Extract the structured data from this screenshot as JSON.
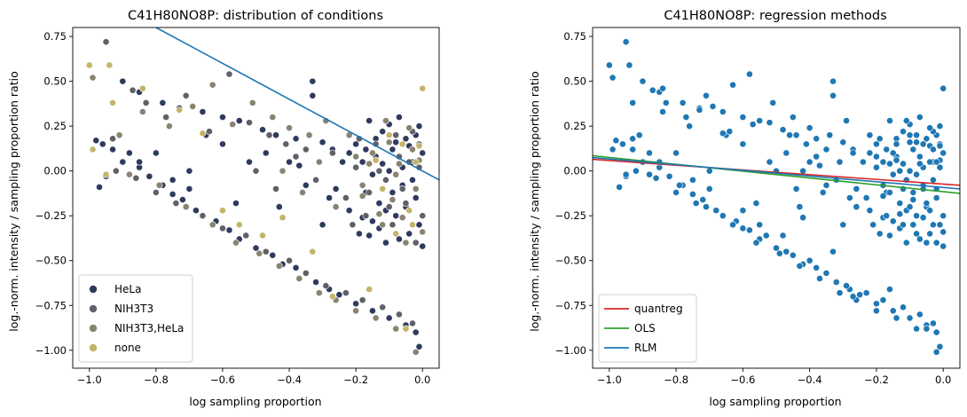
{
  "chart_data": [
    {
      "type": "scatter",
      "title": "C41H80NO8P: distribution of conditions",
      "xlabel": "log sampling proportion",
      "ylabel": "log.-norm. intensity / sampling proportion ratio",
      "xlim": [
        -1.05,
        0.05
      ],
      "ylim": [
        -1.1,
        0.8
      ],
      "xticks": [
        "−1.0",
        "−0.8",
        "−0.6",
        "−0.4",
        "−0.2",
        "0.0"
      ],
      "yticks": [
        "−1.00",
        "−0.75",
        "−0.50",
        "−0.25",
        "0.00",
        "0.25",
        "0.50",
        "0.75"
      ],
      "legend_position": "lower-left",
      "series": [
        {
          "name": "HeLa",
          "color": "#2f3a5e",
          "values": [
            [
              -0.98,
              0.17
            ],
            [
              -0.96,
              0.15
            ],
            [
              -0.93,
              0.12
            ],
            [
              -0.9,
              0.05
            ],
            [
              -0.88,
              0.1
            ],
            [
              -0.85,
              0.02
            ],
            [
              -0.82,
              -0.03
            ],
            [
              -0.78,
              -0.08
            ],
            [
              -0.75,
              -0.13
            ],
            [
              -0.72,
              -0.16
            ],
            [
              -0.7,
              -0.1
            ],
            [
              -0.68,
              -0.22
            ],
            [
              -0.62,
              -0.28
            ],
            [
              -0.58,
              -0.33
            ],
            [
              -0.55,
              -0.38
            ],
            [
              -0.5,
              -0.43
            ],
            [
              -0.45,
              -0.47
            ],
            [
              -0.42,
              -0.52
            ],
            [
              -0.38,
              -0.54
            ],
            [
              -0.32,
              -0.62
            ],
            [
              -0.28,
              -0.66
            ],
            [
              -0.25,
              -0.69
            ],
            [
              -0.2,
              -0.74
            ],
            [
              -0.15,
              -0.78
            ],
            [
              -0.1,
              -0.82
            ],
            [
              -0.05,
              -0.86
            ],
            [
              -0.02,
              -0.9
            ],
            [
              -0.01,
              -0.98
            ],
            [
              -0.9,
              0.5
            ],
            [
              -0.85,
              0.44
            ],
            [
              -0.78,
              0.38
            ],
            [
              -0.73,
              0.35
            ],
            [
              -0.66,
              0.33
            ],
            [
              -0.6,
              0.3
            ],
            [
              -0.55,
              0.28
            ],
            [
              -0.48,
              0.23
            ],
            [
              -0.44,
              0.2
            ],
            [
              -0.38,
              0.18
            ],
            [
              -0.33,
              0.42
            ],
            [
              -0.3,
              0.16
            ],
            [
              -0.27,
              0.12
            ],
            [
              -0.22,
              0.1
            ],
            [
              -0.97,
              -0.09
            ],
            [
              -0.95,
              -0.03
            ],
            [
              -0.85,
              0.05
            ],
            [
              -0.8,
              0.1
            ],
            [
              -0.75,
              -0.05
            ],
            [
              -0.7,
              0.0
            ],
            [
              -0.65,
              0.2
            ],
            [
              -0.6,
              0.15
            ],
            [
              -0.56,
              -0.18
            ],
            [
              -0.52,
              0.05
            ],
            [
              -0.47,
              0.1
            ],
            [
              -0.43,
              -0.2
            ],
            [
              -0.4,
              0.05
            ],
            [
              -0.37,
              0.03
            ],
            [
              -0.35,
              -0.08
            ],
            [
              -0.33,
              0.5
            ],
            [
              -0.3,
              -0.3
            ],
            [
              -0.28,
              -0.15
            ],
            [
              -0.26,
              -0.1
            ],
            [
              -0.24,
              0.05
            ],
            [
              -0.22,
              -0.22
            ],
            [
              -0.2,
              0.15
            ],
            [
              -0.19,
              -0.35
            ],
            [
              -0.18,
              0.05
            ],
            [
              -0.17,
              -0.12
            ],
            [
              -0.16,
              0.28
            ],
            [
              -0.15,
              -0.28
            ],
            [
              -0.14,
              0.08
            ],
            [
              -0.13,
              -0.18
            ],
            [
              -0.12,
              0.22
            ],
            [
              -0.11,
              -0.4
            ],
            [
              -0.1,
              0.0
            ],
            [
              -0.09,
              0.12
            ],
            [
              -0.08,
              -0.25
            ],
            [
              -0.07,
              0.3
            ],
            [
              -0.06,
              -0.08
            ],
            [
              -0.05,
              0.18
            ],
            [
              -0.04,
              -0.35
            ],
            [
              -0.03,
              0.05
            ],
            [
              -0.02,
              -0.15
            ],
            [
              -0.01,
              0.25
            ],
            [
              0.0,
              -0.42
            ],
            [
              0.0,
              0.1
            ],
            [
              -0.01,
              -0.3
            ],
            [
              -0.02,
              0.2
            ],
            [
              -0.03,
              -0.05
            ],
            [
              -0.04,
              0.14
            ],
            [
              -0.05,
              -0.2
            ],
            [
              -0.06,
              0.02
            ],
            [
              -0.07,
              -0.38
            ],
            [
              -0.08,
              0.16
            ],
            [
              -0.09,
              -0.12
            ],
            [
              -0.1,
              0.26
            ],
            [
              -0.11,
              -0.22
            ],
            [
              -0.12,
              0.04
            ],
            [
              -0.13,
              -0.32
            ],
            [
              -0.14,
              0.18
            ],
            [
              -0.15,
              -0.02
            ],
            [
              -0.16,
              -0.36
            ],
            [
              -0.17,
              0.12
            ],
            [
              -0.18,
              -0.26
            ]
          ]
        },
        {
          "name": "NIH3T3",
          "color": "#5f6068",
          "values": [
            [
              -0.95,
              0.72
            ],
            [
              -0.93,
              0.18
            ],
            [
              -0.87,
              0.45
            ],
            [
              -0.83,
              0.38
            ],
            [
              -0.77,
              0.3
            ],
            [
              -0.71,
              0.42
            ],
            [
              -0.64,
              0.22
            ],
            [
              -0.58,
              0.54
            ],
            [
              -0.52,
              0.27
            ],
            [
              -0.46,
              0.2
            ],
            [
              -0.41,
              0.15
            ],
            [
              -0.35,
              0.12
            ],
            [
              -0.92,
              0.0
            ],
            [
              -0.86,
              -0.04
            ],
            [
              -0.8,
              -0.12
            ],
            [
              -0.74,
              -0.18
            ],
            [
              -0.66,
              -0.25
            ],
            [
              -0.6,
              -0.32
            ],
            [
              -0.53,
              -0.36
            ],
            [
              -0.47,
              -0.45
            ],
            [
              -0.4,
              -0.5
            ],
            [
              -0.35,
              -0.57
            ],
            [
              -0.29,
              -0.64
            ],
            [
              -0.23,
              -0.68
            ],
            [
              -0.18,
              -0.72
            ],
            [
              -0.12,
              -0.76
            ],
            [
              -0.07,
              -0.8
            ],
            [
              -0.03,
              -0.85
            ],
            [
              -0.5,
              0.0
            ],
            [
              -0.44,
              -0.1
            ],
            [
              -0.38,
              0.08
            ],
            [
              -0.32,
              -0.05
            ],
            [
              -0.27,
              0.1
            ],
            [
              -0.23,
              -0.15
            ],
            [
              -0.2,
              0.02
            ],
            [
              -0.17,
              -0.25
            ],
            [
              -0.14,
              0.15
            ],
            [
              -0.11,
              -0.05
            ],
            [
              -0.09,
              -0.3
            ],
            [
              -0.07,
              0.08
            ],
            [
              -0.05,
              -0.18
            ],
            [
              -0.03,
              0.22
            ],
            [
              -0.02,
              -0.4
            ],
            [
              -0.01,
              0.02
            ],
            [
              0.0,
              -0.25
            ],
            [
              -0.01,
              0.15
            ],
            [
              -0.04,
              0.05
            ],
            [
              -0.06,
              -0.1
            ],
            [
              -0.08,
              0.2
            ],
            [
              -0.1,
              -0.2
            ],
            [
              -0.13,
              0.0
            ],
            [
              -0.16,
              -0.12
            ],
            [
              -0.19,
              0.18
            ],
            [
              -0.21,
              -0.3
            ]
          ]
        },
        {
          "name": "NIH3T3,HeLa",
          "color": "#8a8371",
          "values": [
            [
              -0.99,
              0.52
            ],
            [
              -0.91,
              0.2
            ],
            [
              -0.84,
              0.33
            ],
            [
              -0.76,
              0.25
            ],
            [
              -0.69,
              0.36
            ],
            [
              -0.63,
              0.48
            ],
            [
              -0.57,
              0.26
            ],
            [
              -0.51,
              0.38
            ],
            [
              -0.45,
              0.3
            ],
            [
              -0.4,
              0.24
            ],
            [
              -0.34,
              0.2
            ],
            [
              -0.29,
              0.28
            ],
            [
              -0.88,
              -0.02
            ],
            [
              -0.79,
              -0.08
            ],
            [
              -0.71,
              -0.2
            ],
            [
              -0.63,
              -0.3
            ],
            [
              -0.56,
              -0.4
            ],
            [
              -0.49,
              -0.46
            ],
            [
              -0.43,
              -0.53
            ],
            [
              -0.37,
              -0.6
            ],
            [
              -0.31,
              -0.68
            ],
            [
              -0.26,
              -0.72
            ],
            [
              -0.2,
              -0.78
            ],
            [
              -0.14,
              -0.82
            ],
            [
              -0.08,
              -0.88
            ],
            [
              -0.02,
              -1.01
            ],
            [
              -0.42,
              0.0
            ],
            [
              -0.36,
              -0.12
            ],
            [
              -0.31,
              0.05
            ],
            [
              -0.26,
              -0.2
            ],
            [
              -0.22,
              0.2
            ],
            [
              -0.18,
              -0.08
            ],
            [
              -0.15,
              0.1
            ],
            [
              -0.12,
              -0.3
            ],
            [
              -0.1,
              0.16
            ],
            [
              -0.08,
              -0.02
            ],
            [
              -0.06,
              -0.26
            ],
            [
              -0.04,
              0.24
            ],
            [
              -0.02,
              -0.1
            ],
            [
              -0.01,
              0.06
            ],
            [
              0.0,
              -0.34
            ],
            [
              -0.03,
              0.12
            ],
            [
              -0.05,
              -0.4
            ],
            [
              -0.07,
              0.04
            ],
            [
              -0.09,
              -0.16
            ],
            [
              -0.11,
              0.28
            ],
            [
              -0.13,
              -0.24
            ],
            [
              -0.16,
              0.04
            ],
            [
              -0.18,
              -0.14
            ],
            [
              -0.2,
              0.08
            ]
          ]
        },
        {
          "name": "none",
          "color": "#c4b46a",
          "values": [
            [
              -1.0,
              0.59
            ],
            [
              -0.94,
              0.59
            ],
            [
              -0.93,
              0.38
            ],
            [
              -0.84,
              0.46
            ],
            [
              -0.73,
              0.34
            ],
            [
              -0.66,
              0.21
            ],
            [
              -0.6,
              -0.22
            ],
            [
              -0.55,
              -0.3
            ],
            [
              -0.48,
              -0.36
            ],
            [
              -0.42,
              -0.26
            ],
            [
              -0.33,
              -0.45
            ],
            [
              -0.27,
              -0.7
            ],
            [
              -0.16,
              -0.66
            ],
            [
              -0.05,
              -0.88
            ],
            [
              0.0,
              0.46
            ],
            [
              -0.02,
              0.05
            ],
            [
              -0.04,
              -0.22
            ],
            [
              -0.06,
              0.15
            ],
            [
              -0.08,
              -0.35
            ],
            [
              -0.1,
              0.2
            ],
            [
              -0.12,
              -0.1
            ],
            [
              -0.14,
              0.06
            ],
            [
              -0.03,
              -0.3
            ],
            [
              -0.01,
              0.14
            ],
            [
              -0.95,
              -0.02
            ],
            [
              -0.99,
              0.12
            ]
          ]
        }
      ],
      "lines": [
        {
          "name": "fit",
          "color": "#1f77b4",
          "x": [
            -0.8,
            0.05
          ],
          "y": [
            0.8,
            -0.05
          ]
        }
      ]
    },
    {
      "type": "scatter",
      "title": "C41H80NO8P: regression methods",
      "xlabel": "log sampling proportion",
      "ylabel": "log.-norm. intensity / sampling proportion ratio",
      "xlim": [
        -1.05,
        0.05
      ],
      "ylim": [
        -1.1,
        0.8
      ],
      "xticks": [
        "−1.0",
        "−0.8",
        "−0.6",
        "−0.4",
        "−0.2",
        "0.0"
      ],
      "yticks": [
        "−1.00",
        "−0.75",
        "−0.50",
        "−0.25",
        "0.00",
        "0.25",
        "0.50",
        "0.75"
      ],
      "legend_position": "lower-left",
      "point_color": "#1f77b4",
      "series": [
        {
          "name": "quantreg",
          "color": "#d62728",
          "x": [
            -1.05,
            0.05
          ],
          "y": [
            0.065,
            -0.08
          ]
        },
        {
          "name": "OLS",
          "color": "#2ca02c",
          "x": [
            -1.05,
            0.05
          ],
          "y": [
            0.085,
            -0.125
          ]
        },
        {
          "name": "RLM",
          "color": "#1f77b4",
          "x": [
            -1.05,
            0.05
          ],
          "y": [
            0.075,
            -0.1
          ]
        }
      ]
    }
  ]
}
